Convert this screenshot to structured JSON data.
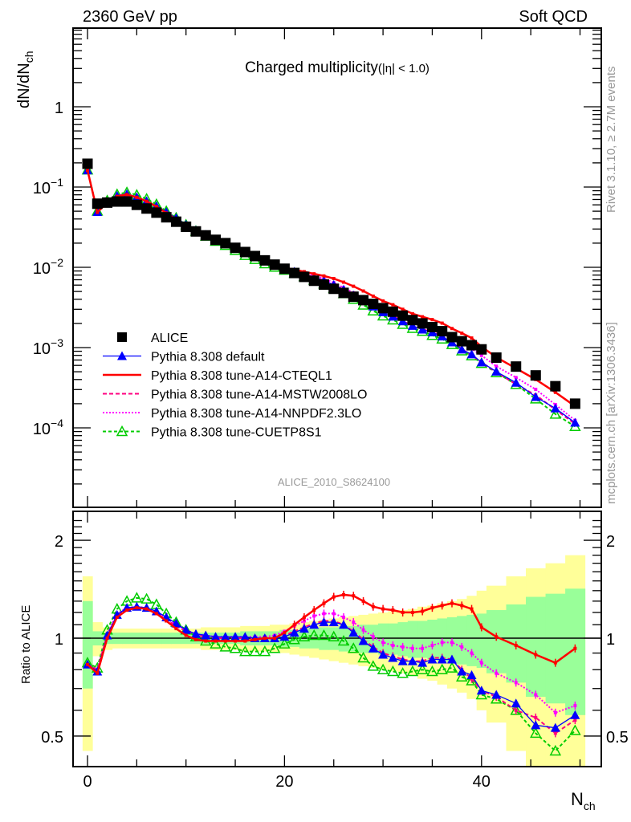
{
  "header": {
    "left": "2360 GeV pp",
    "right": "Soft QCD"
  },
  "side_labels": {
    "rivet": "Rivet 3.1.10, ≥ 2.7M events",
    "mcplots": "mcplots.cern.ch [arXiv:1306.3436]"
  },
  "chart_data": [
    {
      "type": "line",
      "title": "Charged multiplicity",
      "title_suffix": "(|η| < 1.0)",
      "analysis_id": "ALICE_2010_S8624100",
      "xlabel": "N",
      "xlabel_sub": "ch",
      "ylabel": "dN/dN",
      "ylabel_sub": "ch",
      "yscale": "log",
      "xlim": [
        -1.5,
        51
      ],
      "ylim": [
        2e-05,
        8
      ],
      "ytick_labels": [
        {
          "value": 1,
          "base": "1",
          "exp": ""
        },
        {
          "value": 0.1,
          "base": "10",
          "exp": "−1"
        },
        {
          "value": 0.01,
          "base": "10",
          "exp": "−2"
        },
        {
          "value": 0.001,
          "base": "10",
          "exp": "−3"
        },
        {
          "value": 0.0001,
          "base": "10",
          "exp": "−4"
        }
      ],
      "legend_position": "center-left",
      "x": [
        0,
        1,
        2,
        3,
        4,
        5,
        6,
        7,
        8,
        9,
        10,
        11,
        12,
        13,
        14,
        15,
        16,
        17,
        18,
        19,
        20,
        21,
        22,
        23,
        24,
        25,
        26,
        27,
        28,
        29,
        30,
        31,
        32,
        33,
        34,
        35,
        36,
        37,
        38,
        39,
        40,
        41.5,
        43.5,
        45.5,
        47.5,
        49.5
      ],
      "series": [
        {
          "name": "ALICE",
          "key": "data",
          "color": "#000000",
          "marker": "square",
          "values": [
            0.195,
            0.062,
            0.064,
            0.066,
            0.066,
            0.06,
            0.054,
            0.048,
            0.042,
            0.037,
            0.032,
            0.028,
            0.025,
            0.022,
            0.02,
            0.0175,
            0.0155,
            0.0138,
            0.0122,
            0.0108,
            0.0096,
            0.0085,
            0.0076,
            0.0068,
            0.0061,
            0.0054,
            0.0048,
            0.0043,
            0.0039,
            0.0035,
            0.0031,
            0.0028,
            0.0025,
            0.0022,
            0.002,
            0.0018,
            0.0016,
            0.00135,
            0.0012,
            0.00107,
            0.00095,
            0.00075,
            0.00058,
            0.00045,
            0.00033,
            0.0002
          ]
        },
        {
          "name": "Pythia 8.308 default",
          "key": "default",
          "color": "#0000ff",
          "dash": "",
          "marker": "triangle-filled",
          "ratio": [
            0.83,
            0.79,
            1.02,
            1.18,
            1.24,
            1.25,
            1.24,
            1.21,
            1.16,
            1.11,
            1.06,
            1.03,
            1.02,
            1.01,
            1.01,
            1.01,
            1.01,
            1.0,
            1.0,
            1.0,
            1.01,
            1.04,
            1.07,
            1.1,
            1.12,
            1.12,
            1.1,
            1.04,
            0.98,
            0.93,
            0.89,
            0.87,
            0.85,
            0.85,
            0.84,
            0.86,
            0.86,
            0.86,
            0.79,
            0.77,
            0.69,
            0.67,
            0.63,
            0.54,
            0.53,
            0.58
          ]
        },
        {
          "name": "Pythia 8.308 tune-A14-CTEQL1",
          "key": "cteql1",
          "color": "#ff0000",
          "dash": "",
          "marker": "small",
          "ratio": [
            0.83,
            0.78,
            1.0,
            1.16,
            1.22,
            1.24,
            1.23,
            1.19,
            1.13,
            1.07,
            1.02,
            0.99,
            0.98,
            0.98,
            0.98,
            0.98,
            0.98,
            0.99,
            1.0,
            1.0,
            1.04,
            1.1,
            1.16,
            1.22,
            1.28,
            1.34,
            1.36,
            1.35,
            1.3,
            1.25,
            1.23,
            1.22,
            1.2,
            1.2,
            1.21,
            1.24,
            1.26,
            1.28,
            1.26,
            1.23,
            1.08,
            1.01,
            0.95,
            0.89,
            0.84,
            0.93
          ]
        },
        {
          "name": "Pythia 8.308 tune-A14-MSTW2008LO",
          "key": "mstw",
          "color": "#ff0080",
          "dash": "5,3",
          "marker": "small",
          "ratio": [
            0.83,
            0.8,
            1.02,
            1.18,
            1.23,
            1.24,
            1.23,
            1.19,
            1.14,
            1.09,
            1.05,
            1.02,
            1.01,
            1.0,
            1.0,
            1.0,
            1.0,
            1.0,
            0.99,
            1.0,
            1.02,
            1.05,
            1.08,
            1.11,
            1.13,
            1.13,
            1.1,
            1.05,
            0.99,
            0.94,
            0.9,
            0.88,
            0.86,
            0.85,
            0.85,
            0.87,
            0.87,
            0.86,
            0.8,
            0.75,
            0.69,
            0.66,
            0.6,
            0.57,
            0.51,
            0.56
          ]
        },
        {
          "name": "Pythia 8.308 tune-A14-NNPDF2.3LO",
          "key": "nnpdf",
          "color": "#ff00ff",
          "dash": "2,2",
          "marker": "small",
          "ratio": [
            0.83,
            0.8,
            1.03,
            1.19,
            1.24,
            1.25,
            1.24,
            1.2,
            1.15,
            1.1,
            1.06,
            1.03,
            1.02,
            1.01,
            1.01,
            1.01,
            1.01,
            1.01,
            1.01,
            1.02,
            1.05,
            1.09,
            1.13,
            1.17,
            1.19,
            1.19,
            1.16,
            1.12,
            1.06,
            1.01,
            0.97,
            0.95,
            0.94,
            0.93,
            0.93,
            0.95,
            0.97,
            0.97,
            0.94,
            0.9,
            0.84,
            0.78,
            0.73,
            0.67,
            0.59,
            0.62
          ]
        },
        {
          "name": "Pythia 8.308 tune-CUETP8S1",
          "key": "cuetp8s1",
          "color": "#00cc00",
          "dash": "4,3",
          "marker": "triangle-open",
          "ratio": [
            0.84,
            0.81,
            1.06,
            1.23,
            1.3,
            1.33,
            1.32,
            1.27,
            1.19,
            1.12,
            1.06,
            1.01,
            0.98,
            0.96,
            0.94,
            0.93,
            0.91,
            0.91,
            0.91,
            0.93,
            0.96,
            0.99,
            1.01,
            1.02,
            1.02,
            1.01,
            0.98,
            0.93,
            0.87,
            0.82,
            0.8,
            0.79,
            0.78,
            0.79,
            0.8,
            0.79,
            0.8,
            0.81,
            0.76,
            0.74,
            0.67,
            0.65,
            0.6,
            0.51,
            0.45,
            0.52
          ]
        }
      ]
    },
    {
      "type": "line",
      "ylabel": "Ratio to ALICE",
      "yscale": "log",
      "ylim": [
        0.4,
        2.4
      ],
      "ytick_labels": [
        {
          "value": 2,
          "label": "2"
        },
        {
          "value": 1,
          "label": "1"
        },
        {
          "value": 0.5,
          "label": "0.5"
        }
      ],
      "xtick_labels": [
        {
          "value": 0,
          "label": "0"
        },
        {
          "value": 20,
          "label": "20"
        },
        {
          "value": 40,
          "label": "40"
        }
      ],
      "uncertainty_bands": {
        "inner_color": "#99ff99",
        "outer_color": "#ffff99",
        "bin_edges": [
          -0.5,
          0.5,
          1.5,
          2.5,
          3.5,
          4.5,
          5.5,
          6.5,
          7.5,
          8.5,
          9.5,
          10.5,
          11.5,
          12.5,
          13.5,
          14.5,
          15.5,
          16.5,
          17.5,
          18.5,
          19.5,
          20.5,
          21.5,
          22.5,
          23.5,
          24.5,
          25.5,
          26.5,
          27.5,
          28.5,
          29.5,
          30.5,
          31.5,
          32.5,
          33.5,
          34.5,
          35.5,
          36.5,
          37.5,
          38.5,
          39.5,
          40.5,
          42.5,
          44.5,
          46.5,
          48.5,
          50.5
        ],
        "inner": [
          0.3,
          0.05,
          0.04,
          0.04,
          0.04,
          0.04,
          0.04,
          0.04,
          0.04,
          0.04,
          0.04,
          0.04,
          0.04,
          0.04,
          0.04,
          0.04,
          0.05,
          0.05,
          0.05,
          0.05,
          0.06,
          0.06,
          0.07,
          0.07,
          0.08,
          0.08,
          0.09,
          0.09,
          0.1,
          0.1,
          0.11,
          0.11,
          0.12,
          0.13,
          0.13,
          0.14,
          0.15,
          0.16,
          0.17,
          0.18,
          0.19,
          0.22,
          0.27,
          0.34,
          0.37,
          0.42
        ],
        "outer": [
          0.55,
          0.12,
          0.08,
          0.07,
          0.07,
          0.07,
          0.07,
          0.07,
          0.07,
          0.07,
          0.07,
          0.07,
          0.08,
          0.08,
          0.08,
          0.08,
          0.09,
          0.09,
          0.09,
          0.1,
          0.1,
          0.11,
          0.12,
          0.13,
          0.14,
          0.15,
          0.16,
          0.17,
          0.18,
          0.19,
          0.2,
          0.21,
          0.22,
          0.23,
          0.25,
          0.26,
          0.28,
          0.3,
          0.32,
          0.35,
          0.4,
          0.45,
          0.55,
          0.64,
          0.7,
          0.8
        ]
      }
    }
  ]
}
